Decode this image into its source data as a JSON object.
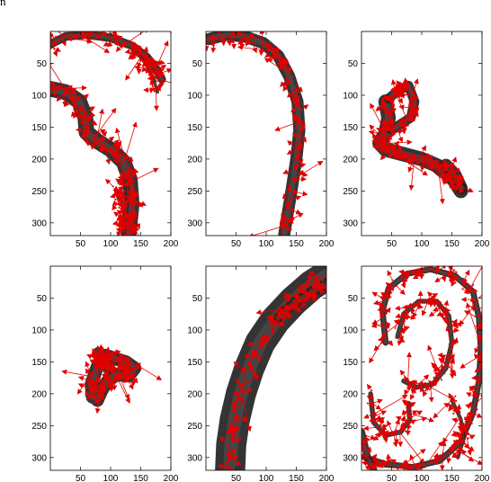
{
  "figure": {
    "corner_label": "n",
    "arrow_color": "#e00000",
    "blob_color": "#1e1e1e"
  },
  "chart_data": [
    {
      "type": "image-quiver",
      "panel": "top-left",
      "xlim": [
        0,
        200
      ],
      "ylim": [
        0,
        320
      ],
      "y_reversed": true,
      "xticks": [
        50,
        100,
        150,
        200
      ],
      "yticks": [
        50,
        100,
        150,
        200,
        250,
        300
      ],
      "grid": false
    },
    {
      "type": "image-quiver",
      "panel": "top-middle",
      "xlim": [
        0,
        200
      ],
      "ylim": [
        0,
        320
      ],
      "y_reversed": true,
      "xticks": [
        50,
        100,
        150,
        200
      ],
      "yticks": [
        50,
        100,
        150,
        200,
        250,
        300
      ],
      "grid": false
    },
    {
      "type": "image-quiver",
      "panel": "top-right",
      "xlim": [
        0,
        200
      ],
      "ylim": [
        0,
        320
      ],
      "y_reversed": true,
      "xticks": [
        50,
        100,
        150,
        200
      ],
      "yticks": [
        50,
        100,
        150,
        200,
        250,
        300
      ],
      "grid": false
    },
    {
      "type": "image-quiver",
      "panel": "bottom-left",
      "xlim": [
        0,
        200
      ],
      "ylim": [
        0,
        320
      ],
      "y_reversed": true,
      "xticks": [
        50,
        100,
        150,
        200
      ],
      "yticks": [
        50,
        100,
        150,
        200,
        250,
        300
      ],
      "grid": false
    },
    {
      "type": "image-quiver",
      "panel": "bottom-middle",
      "xlim": [
        0,
        200
      ],
      "ylim": [
        0,
        320
      ],
      "y_reversed": true,
      "xticks": [
        50,
        100,
        150,
        200
      ],
      "yticks": [
        50,
        100,
        150,
        200,
        250,
        300
      ],
      "grid": false
    },
    {
      "type": "image-quiver",
      "panel": "bottom-right",
      "xlim": [
        0,
        200
      ],
      "ylim": [
        0,
        320
      ],
      "y_reversed": true,
      "xticks": [
        50,
        100,
        150,
        200
      ],
      "yticks": [
        50,
        100,
        150,
        200,
        250,
        300
      ],
      "grid": false
    }
  ]
}
